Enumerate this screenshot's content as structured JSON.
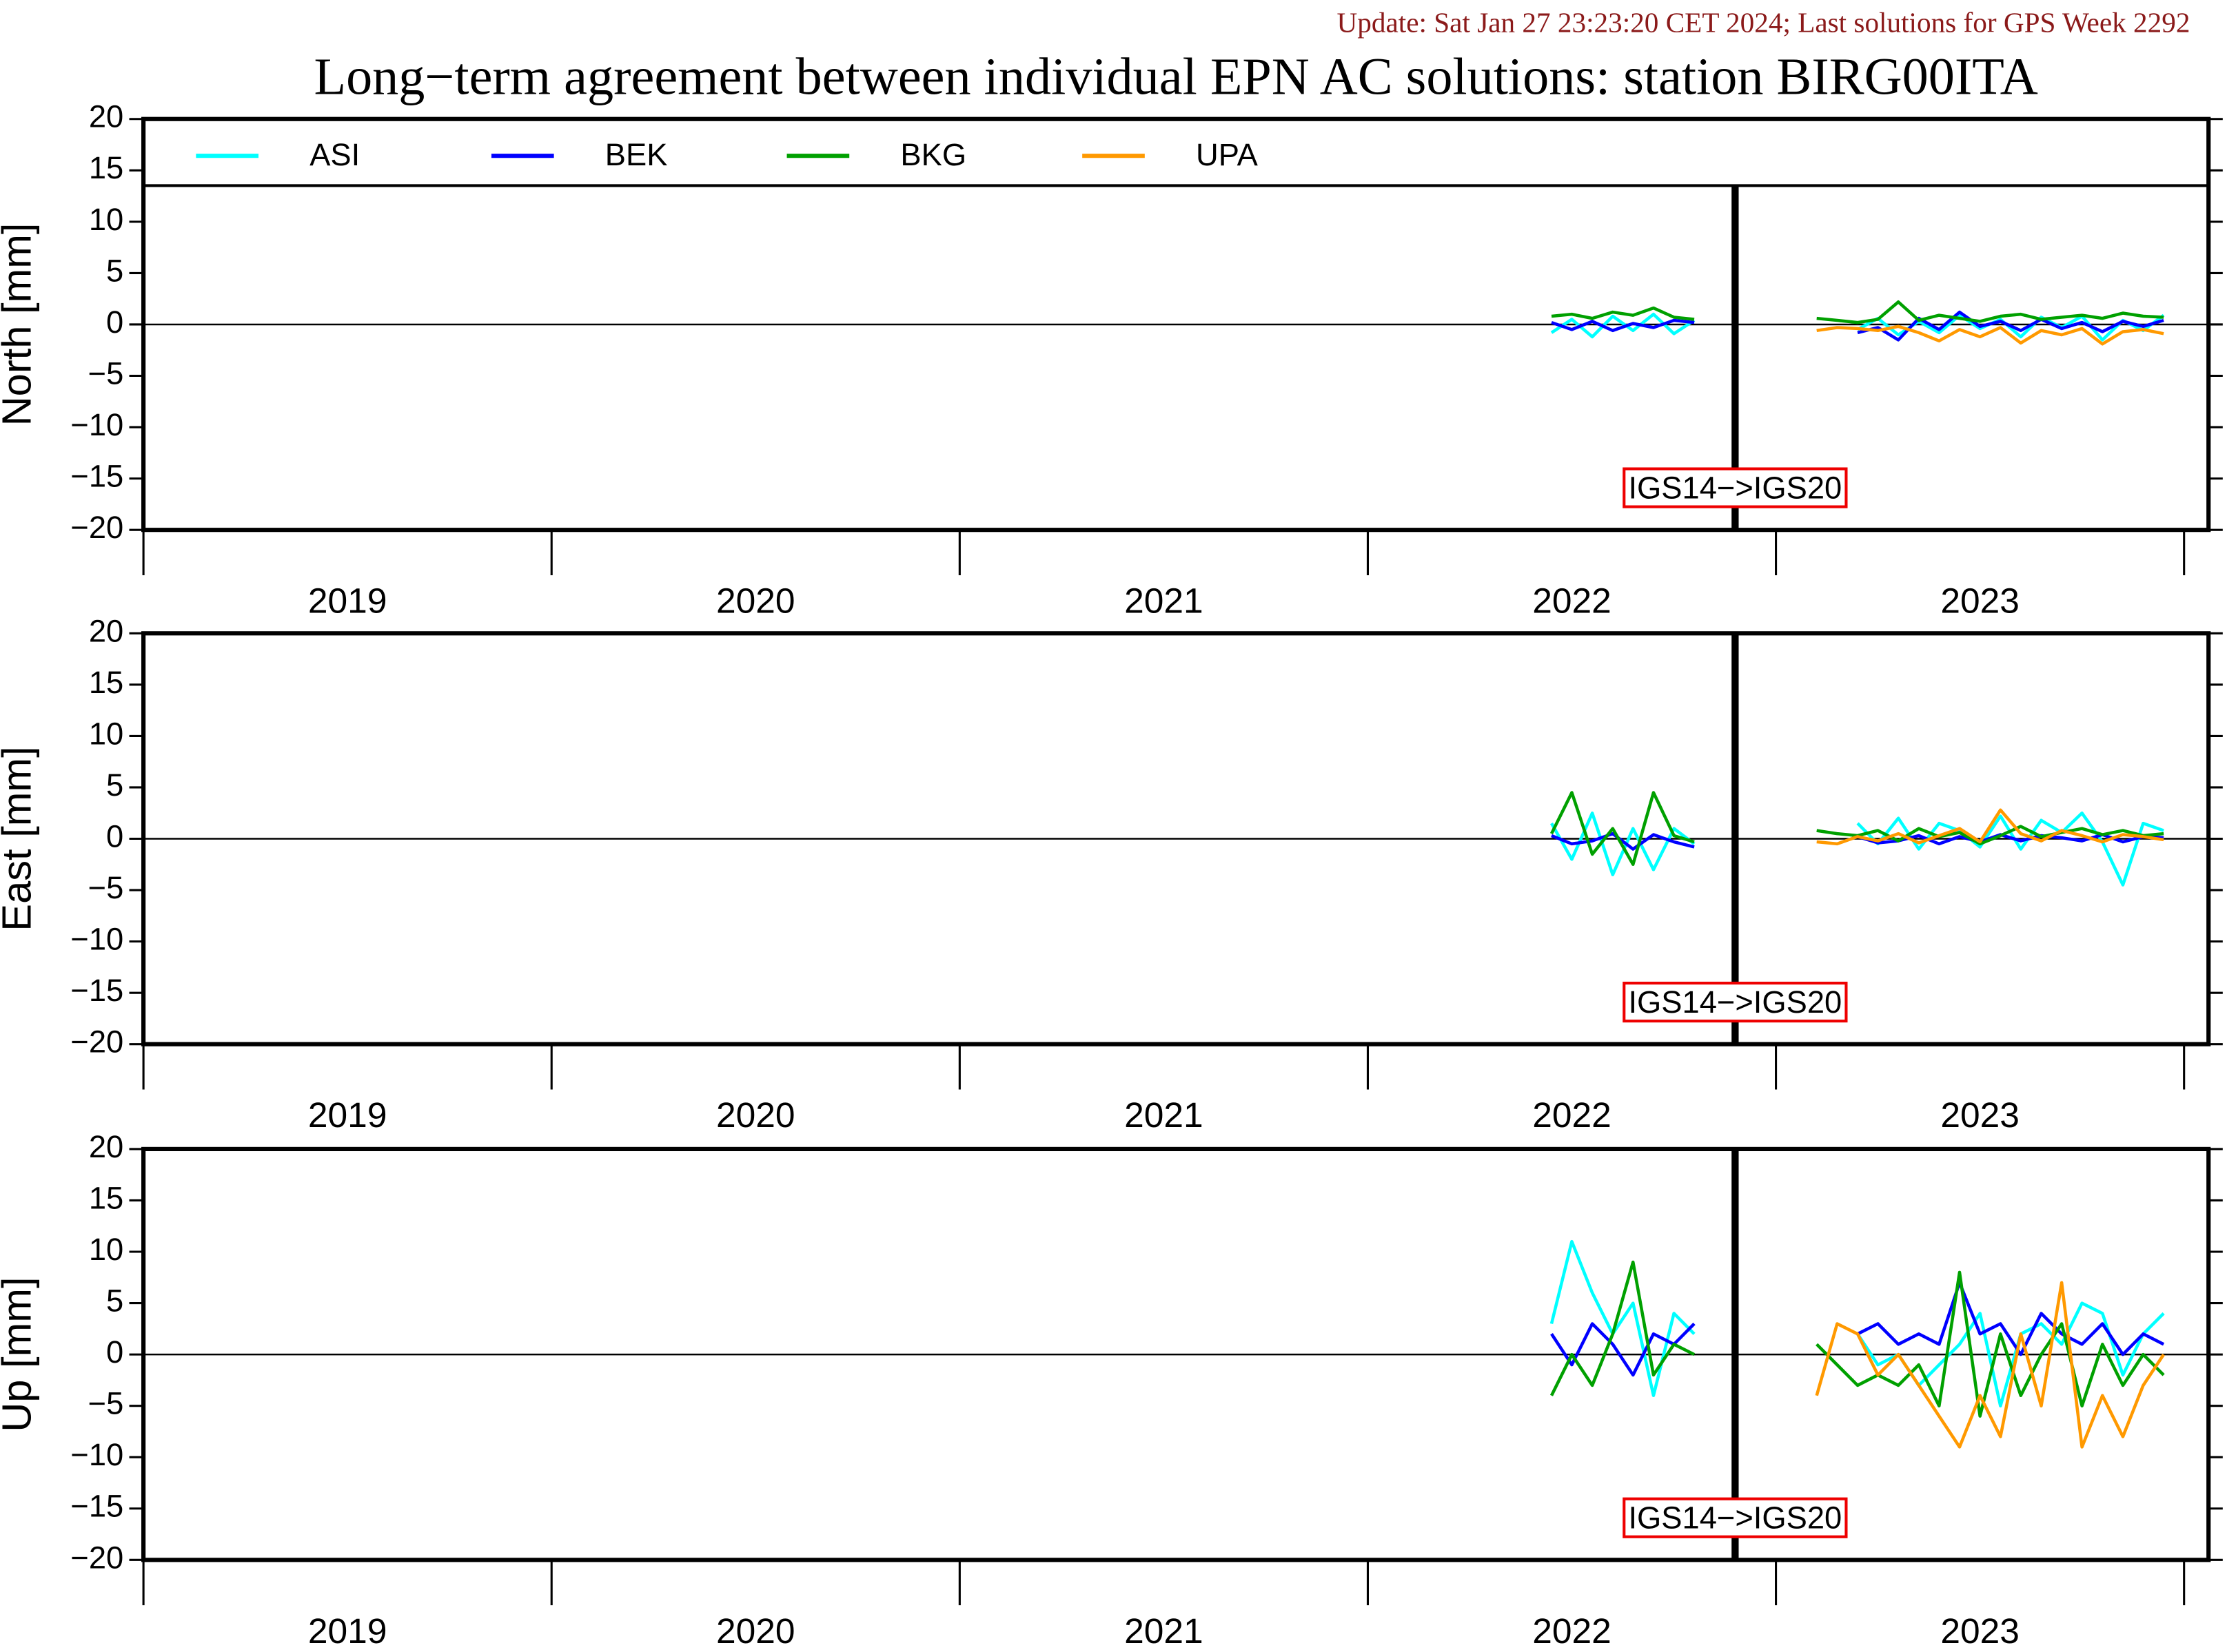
{
  "header": {
    "update": "Update: Sat Jan 27 23:23:20 CET 2024; Last solutions for GPS Week 2292",
    "title": "Long−term agreement between individual EPN AC solutions: station BIRG00ITA"
  },
  "chart_data": [
    {
      "type": "line",
      "ylabel": "North [mm]",
      "legend": "top",
      "xlim": [
        2019,
        2024.06
      ],
      "ylim": [
        -20,
        20
      ],
      "xticks": [
        2019,
        2020,
        2021,
        2022,
        2023,
        2024
      ],
      "xlabels": [
        {
          "value": 2019.5,
          "label": "2019"
        },
        {
          "value": 2020.5,
          "label": "2020"
        },
        {
          "value": 2021.5,
          "label": "2021"
        },
        {
          "value": 2022.5,
          "label": "2022"
        },
        {
          "value": 2023.5,
          "label": "2023"
        }
      ],
      "yticks": [
        {
          "value": -20,
          "label": "−20"
        },
        {
          "value": -15,
          "label": "−15"
        },
        {
          "value": -10,
          "label": "−10"
        },
        {
          "value": -5,
          "label": "−5"
        },
        0,
        5,
        10,
        15,
        20
      ],
      "event": {
        "x": 2022.9,
        "label": "IGS14−>IGS20"
      },
      "x": [
        2022.45,
        2022.5,
        2022.55,
        2022.6,
        2022.65,
        2022.7,
        2022.75,
        2022.8,
        2022.85,
        2022.9,
        2022.95,
        2023.0,
        2023.05,
        2023.1,
        2023.15,
        2023.2,
        2023.25,
        2023.3,
        2023.35,
        2023.4,
        2023.45,
        2023.5,
        2023.55,
        2023.6,
        2023.65,
        2023.7,
        2023.75,
        2023.8,
        2023.85,
        2023.9,
        2023.95
      ],
      "series": [
        {
          "name": "ASI",
          "color": "#00ffff",
          "values": [
            -0.8,
            0.5,
            -1.2,
            0.8,
            -0.6,
            1.0,
            -0.9,
            0.4,
            null,
            null,
            null,
            null,
            null,
            null,
            null,
            -0.5,
            0.6,
            -1.0,
            0.3,
            -0.8,
            0.9,
            -0.4,
            0.5,
            -1.2,
            0.7,
            -0.3,
            0.8,
            -1.5,
            0.4,
            -0.6,
            0.9
          ]
        },
        {
          "name": "BEK",
          "color": "#0000ff",
          "values": [
            0.2,
            -0.5,
            0.3,
            -0.6,
            0.1,
            -0.3,
            0.4,
            0.2,
            null,
            null,
            null,
            null,
            null,
            null,
            null,
            -0.8,
            -0.3,
            -1.5,
            0.6,
            -0.5,
            1.2,
            -0.2,
            0.3,
            -0.6,
            0.5,
            -0.4,
            0.2,
            -0.7,
            0.3,
            -0.2,
            0.4
          ]
        },
        {
          "name": "BKG",
          "color": "#00a000",
          "values": [
            0.8,
            1.0,
            0.6,
            1.2,
            0.9,
            1.6,
            0.7,
            0.5,
            null,
            null,
            null,
            null,
            null,
            0.6,
            0.4,
            0.2,
            0.5,
            2.2,
            0.4,
            0.9,
            0.6,
            0.3,
            0.8,
            1.0,
            0.5,
            0.7,
            0.9,
            0.6,
            1.1,
            0.8,
            0.7
          ]
        },
        {
          "name": "UPA",
          "color": "#ff9900",
          "values": [
            null,
            null,
            null,
            null,
            null,
            null,
            null,
            null,
            null,
            null,
            null,
            null,
            null,
            -0.6,
            -0.3,
            -0.4,
            -0.6,
            -0.2,
            -0.8,
            -1.6,
            -0.5,
            -1.2,
            -0.3,
            -1.8,
            -0.6,
            -1.0,
            -0.4,
            -1.9,
            -0.7,
            -0.5,
            -0.9
          ]
        }
      ]
    },
    {
      "type": "line",
      "ylabel": "East [mm]",
      "xlim": [
        2019,
        2024.06
      ],
      "ylim": [
        -20,
        20
      ],
      "xticks": [
        2019,
        2020,
        2021,
        2022,
        2023,
        2024
      ],
      "xlabels": [
        {
          "value": 2019.5,
          "label": "2019"
        },
        {
          "value": 2020.5,
          "label": "2020"
        },
        {
          "value": 2021.5,
          "label": "2021"
        },
        {
          "value": 2022.5,
          "label": "2022"
        },
        {
          "value": 2023.5,
          "label": "2023"
        }
      ],
      "yticks": [
        {
          "value": -20,
          "label": "−20"
        },
        {
          "value": -15,
          "label": "−15"
        },
        {
          "value": -10,
          "label": "−10"
        },
        {
          "value": -5,
          "label": "−5"
        },
        0,
        5,
        10,
        15,
        20
      ],
      "event": {
        "x": 2022.9,
        "label": "IGS14−>IGS20"
      },
      "x": [
        2022.45,
        2022.5,
        2022.55,
        2022.6,
        2022.65,
        2022.7,
        2022.75,
        2022.8,
        2022.85,
        2022.9,
        2022.95,
        2023.0,
        2023.05,
        2023.1,
        2023.15,
        2023.2,
        2023.25,
        2023.3,
        2023.35,
        2023.4,
        2023.45,
        2023.5,
        2023.55,
        2023.6,
        2023.65,
        2023.7,
        2023.75,
        2023.8,
        2023.85,
        2023.9,
        2023.95
      ],
      "series": [
        {
          "name": "ASI",
          "color": "#00ffff",
          "values": [
            1.5,
            -2.0,
            2.5,
            -3.5,
            1.0,
            -3.0,
            1.0,
            -0.5,
            null,
            null,
            null,
            null,
            null,
            null,
            null,
            1.5,
            -0.5,
            2.0,
            -1.0,
            1.5,
            0.8,
            -0.8,
            2.2,
            -1.0,
            1.8,
            0.6,
            2.5,
            -0.3,
            -4.5,
            1.5,
            0.8
          ]
        },
        {
          "name": "BEK",
          "color": "#0000ff",
          "values": [
            0.3,
            -0.5,
            -0.2,
            0.5,
            -1.0,
            0.4,
            -0.3,
            -0.8,
            null,
            null,
            null,
            null,
            null,
            null,
            null,
            0.2,
            -0.4,
            -0.2,
            0.3,
            -0.5,
            0.2,
            -0.3,
            0.4,
            -0.2,
            0.3,
            0.1,
            -0.2,
            0.4,
            -0.3,
            0.2,
            0.1
          ]
        },
        {
          "name": "BKG",
          "color": "#00a000",
          "values": [
            0.5,
            4.5,
            -1.5,
            1.0,
            -2.5,
            4.5,
            0.3,
            -0.3,
            null,
            null,
            null,
            null,
            null,
            0.8,
            0.5,
            0.3,
            0.8,
            -0.2,
            1.0,
            0.2,
            0.6,
            -0.5,
            0.3,
            1.2,
            0.2,
            0.6,
            1.0,
            0.4,
            0.8,
            0.3,
            0.5
          ]
        },
        {
          "name": "UPA",
          "color": "#ff9900",
          "values": [
            null,
            null,
            null,
            null,
            null,
            null,
            null,
            null,
            null,
            null,
            null,
            null,
            null,
            -0.3,
            -0.5,
            0.2,
            -0.2,
            0.5,
            -0.4,
            0.3,
            1.0,
            -0.3,
            2.8,
            0.5,
            -0.2,
            0.8,
            0.3,
            -0.3,
            0.4,
            0.2,
            -0.1
          ]
        }
      ]
    },
    {
      "type": "line",
      "ylabel": "Up [mm]",
      "xlim": [
        2019,
        2024.06
      ],
      "ylim": [
        -20,
        20
      ],
      "xticks": [
        2019,
        2020,
        2021,
        2022,
        2023,
        2024
      ],
      "xlabels": [
        {
          "value": 2019.5,
          "label": "2019"
        },
        {
          "value": 2020.5,
          "label": "2020"
        },
        {
          "value": 2021.5,
          "label": "2021"
        },
        {
          "value": 2022.5,
          "label": "2022"
        },
        {
          "value": 2023.5,
          "label": "2023"
        }
      ],
      "yticks": [
        {
          "value": -20,
          "label": "−20"
        },
        {
          "value": -15,
          "label": "−15"
        },
        {
          "value": -10,
          "label": "−10"
        },
        {
          "value": -5,
          "label": "−5"
        },
        0,
        5,
        10,
        15,
        20
      ],
      "event": {
        "x": 2022.9,
        "label": "IGS14−>IGS20"
      },
      "x": [
        2022.45,
        2022.5,
        2022.55,
        2022.6,
        2022.65,
        2022.7,
        2022.75,
        2022.8,
        2022.85,
        2022.9,
        2022.95,
        2023.0,
        2023.05,
        2023.1,
        2023.15,
        2023.2,
        2023.25,
        2023.3,
        2023.35,
        2023.4,
        2023.45,
        2023.5,
        2023.55,
        2023.6,
        2023.65,
        2023.7,
        2023.75,
        2023.8,
        2023.85,
        2023.9,
        2023.95
      ],
      "series": [
        {
          "name": "ASI",
          "color": "#00ffff",
          "values": [
            3,
            11,
            6,
            2,
            5,
            -4,
            4,
            2,
            null,
            null,
            null,
            null,
            null,
            null,
            null,
            2,
            -1,
            0,
            -3,
            -1,
            1,
            4,
            -5,
            2,
            3,
            1,
            5,
            4,
            -2,
            2,
            4
          ]
        },
        {
          "name": "BEK",
          "color": "#0000ff",
          "values": [
            2,
            -1,
            3,
            1,
            -2,
            2,
            1,
            3,
            null,
            null,
            null,
            null,
            null,
            null,
            null,
            2,
            3,
            1,
            2,
            1,
            7,
            2,
            3,
            0,
            4,
            2,
            1,
            3,
            0,
            2,
            1
          ]
        },
        {
          "name": "BKG",
          "color": "#00a000",
          "values": [
            -4,
            0,
            -3,
            2,
            9,
            -2,
            1,
            0,
            null,
            null,
            null,
            null,
            null,
            1,
            -1,
            -3,
            -2,
            -3,
            -1,
            -5,
            8,
            -6,
            2,
            -4,
            0,
            3,
            -5,
            1,
            -3,
            0,
            -2
          ]
        },
        {
          "name": "UPA",
          "color": "#ff9900",
          "values": [
            null,
            null,
            null,
            null,
            null,
            null,
            null,
            null,
            null,
            null,
            null,
            null,
            null,
            -4,
            3,
            2,
            -2,
            0,
            -3,
            -6,
            -9,
            -4,
            -8,
            2,
            -5,
            7,
            -9,
            -4,
            -8,
            -3,
            0
          ]
        }
      ]
    }
  ]
}
